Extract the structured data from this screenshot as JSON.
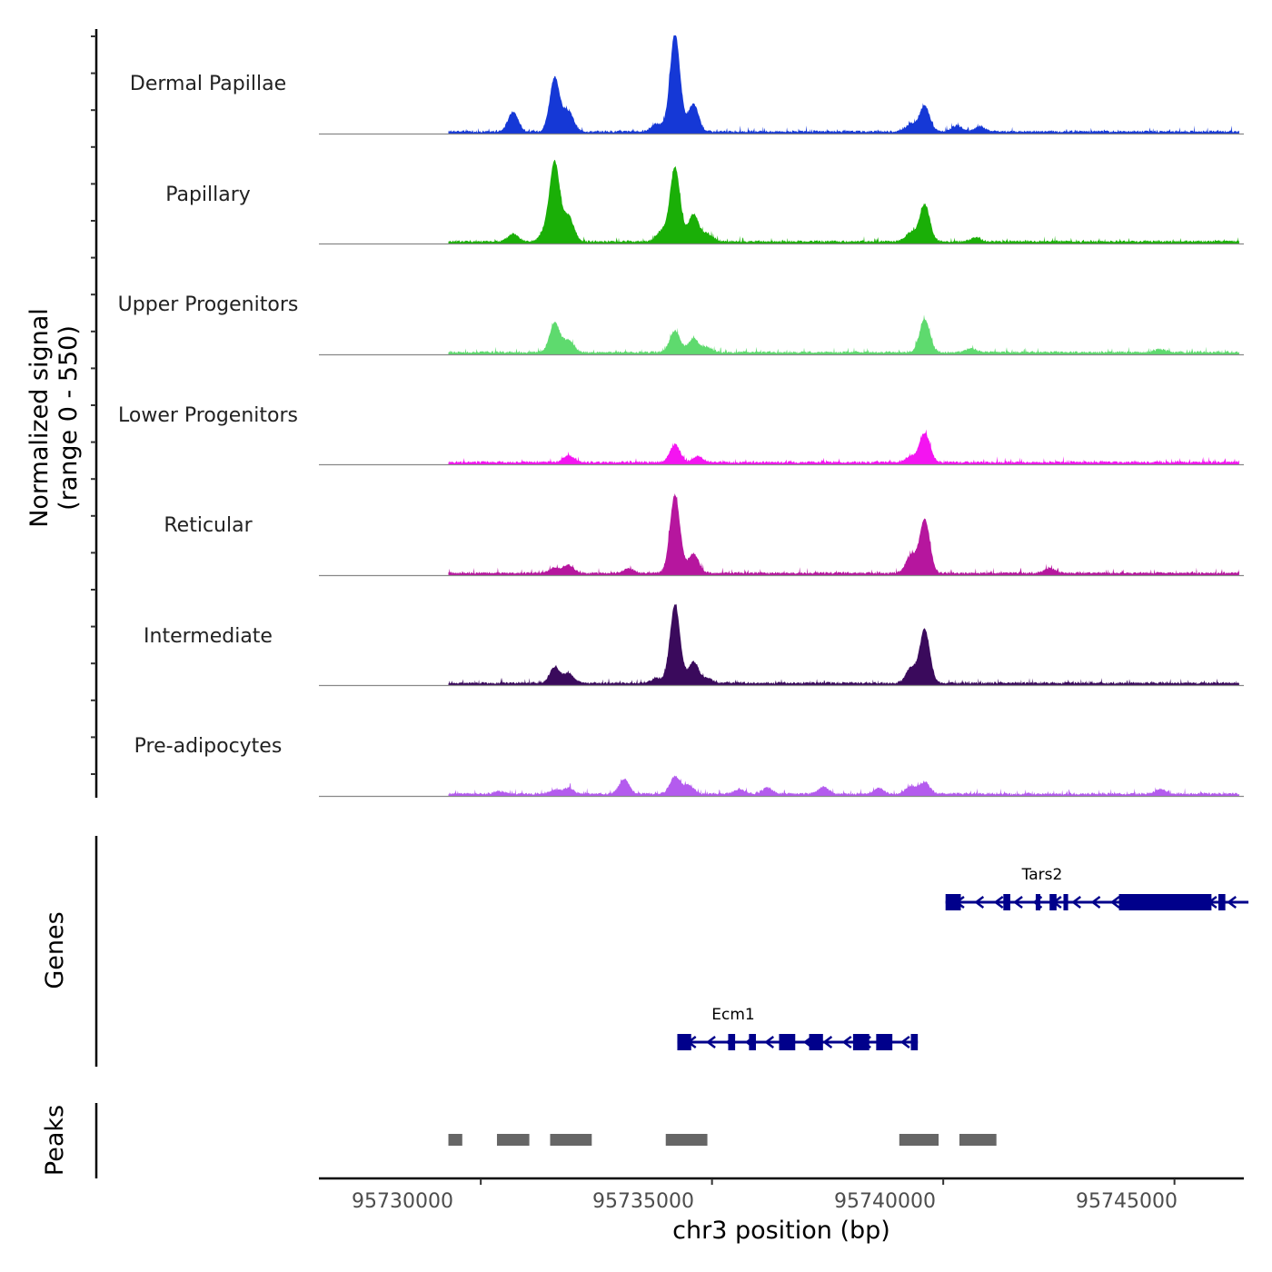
{
  "chart_data": {
    "type": "coverage-track",
    "chromosome": "chr3",
    "xlabel": "chr3 position (bp)",
    "xlim": [
      95726500,
      95746500
    ],
    "xticks": [
      95730000,
      95735000,
      95740000,
      95745000
    ],
    "xtick_labels": [
      "95730000",
      "95735000",
      "95740000",
      "95745000"
    ],
    "ylabel_line1": "Normalized signal",
    "ylabel_line2": "(range 0 - 550)",
    "ylim": [
      0,
      550
    ],
    "signal_start": 95729300,
    "signal_end": 95746400,
    "tracks": [
      {
        "name": "Dermal Papillae",
        "color": "#1538D6",
        "peaks": [
          [
            95730700,
            0.2
          ],
          [
            95731600,
            0.55
          ],
          [
            95731900,
            0.2
          ],
          [
            95733800,
            0.08
          ],
          [
            95734200,
            1.0
          ],
          [
            95734600,
            0.28
          ],
          [
            95739300,
            0.08
          ],
          [
            95739600,
            0.26
          ],
          [
            95740300,
            0.06
          ],
          [
            95740800,
            0.05
          ]
        ]
      },
      {
        "name": "Papillary",
        "color": "#1AAF07",
        "peaks": [
          [
            95730700,
            0.08
          ],
          [
            95731400,
            0.09
          ],
          [
            95731600,
            0.8
          ],
          [
            95731900,
            0.25
          ],
          [
            95733900,
            0.1
          ],
          [
            95734200,
            0.76
          ],
          [
            95734600,
            0.28
          ],
          [
            95734900,
            0.08
          ],
          [
            95739300,
            0.09
          ],
          [
            95739600,
            0.38
          ],
          [
            95740700,
            0.04
          ]
        ]
      },
      {
        "name": "Upper Progenitors",
        "color": "#5EDA6E",
        "peaks": [
          [
            95731600,
            0.3
          ],
          [
            95731900,
            0.12
          ],
          [
            95734200,
            0.22
          ],
          [
            95734600,
            0.14
          ],
          [
            95734900,
            0.05
          ],
          [
            95739600,
            0.34
          ],
          [
            95740600,
            0.04
          ],
          [
            95744700,
            0.03
          ]
        ]
      },
      {
        "name": "Lower Progenitors",
        "color": "#F414F1",
        "peaks": [
          [
            95731900,
            0.07
          ],
          [
            95734200,
            0.18
          ],
          [
            95734700,
            0.06
          ],
          [
            95739300,
            0.06
          ],
          [
            95739600,
            0.3
          ]
        ]
      },
      {
        "name": "Reticular",
        "color": "#B6169E",
        "peaks": [
          [
            95731600,
            0.06
          ],
          [
            95731900,
            0.08
          ],
          [
            95733200,
            0.05
          ],
          [
            95734200,
            0.8
          ],
          [
            95734600,
            0.2
          ],
          [
            95739300,
            0.18
          ],
          [
            95739600,
            0.55
          ],
          [
            95742300,
            0.05
          ]
        ]
      },
      {
        "name": "Intermediate",
        "color": "#3A0A5C",
        "peaks": [
          [
            95731600,
            0.16
          ],
          [
            95731900,
            0.1
          ],
          [
            95733800,
            0.05
          ],
          [
            95734200,
            0.8
          ],
          [
            95734600,
            0.22
          ],
          [
            95734900,
            0.05
          ],
          [
            95739300,
            0.15
          ],
          [
            95739600,
            0.55
          ]
        ]
      },
      {
        "name": "Pre-adipocytes",
        "color": "#B45BEE",
        "peaks": [
          [
            95730400,
            0.03
          ],
          [
            95731600,
            0.04
          ],
          [
            95731900,
            0.06
          ],
          [
            95733100,
            0.15
          ],
          [
            95734200,
            0.18
          ],
          [
            95734500,
            0.09
          ],
          [
            95735600,
            0.05
          ],
          [
            95736200,
            0.06
          ],
          [
            95737400,
            0.07
          ],
          [
            95738600,
            0.06
          ],
          [
            95739300,
            0.08
          ],
          [
            95739600,
            0.12
          ],
          [
            95744700,
            0.05
          ]
        ]
      }
    ],
    "genes_label": "Genes",
    "genes": [
      {
        "name": "Tars2",
        "start": 95740050,
        "end": 95746600,
        "exons": [
          [
            95740050,
            95740380
          ],
          [
            95741300,
            95741450
          ],
          [
            95742000,
            95742100
          ],
          [
            95742300,
            95742450
          ],
          [
            95742600,
            95742700
          ],
          [
            95743800,
            95745800
          ],
          [
            95745950,
            95746100
          ]
        ]
      },
      {
        "name": "Ecm1",
        "start": 95734250,
        "end": 95739450,
        "exons": [
          [
            95734250,
            95734550
          ],
          [
            95735350,
            95735500
          ],
          [
            95735800,
            95735950
          ],
          [
            95736450,
            95736800
          ],
          [
            95737100,
            95737400
          ],
          [
            95738050,
            95738400
          ],
          [
            95738550,
            95738900
          ],
          [
            95739300,
            95739450
          ]
        ]
      }
    ],
    "peaks_label": "Peaks",
    "peak_regions": [
      [
        95729300,
        95729600
      ],
      [
        95730350,
        95731050
      ],
      [
        95731500,
        95732400
      ],
      [
        95734000,
        95734900
      ],
      [
        95739050,
        95739900
      ],
      [
        95740350,
        95741150
      ]
    ]
  }
}
